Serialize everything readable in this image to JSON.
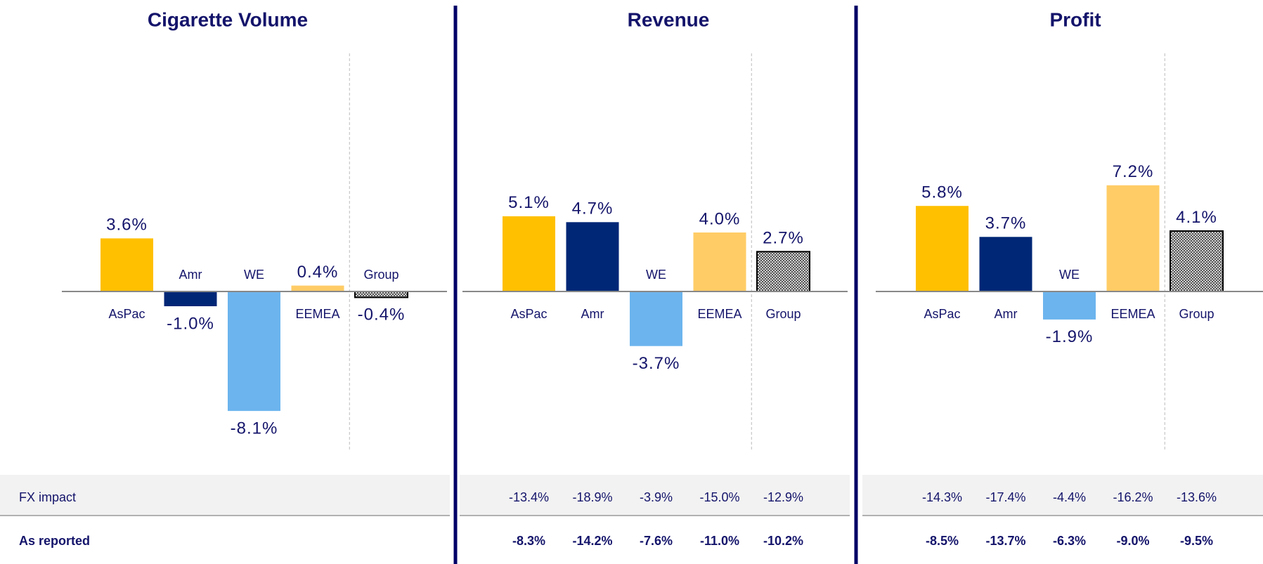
{
  "chart_data": [
    {
      "type": "bar",
      "title": "Cigarette Volume",
      "categories": [
        "AsPac",
        "Amr",
        "WE",
        "EEMEA",
        "Group"
      ],
      "values": [
        3.6,
        -1.0,
        -8.1,
        0.4,
        -0.4
      ],
      "value_labels": [
        "3.6%",
        "-1.0%",
        "-8.1%",
        "0.4%",
        "-0.4%"
      ],
      "colors": [
        "#ffc000",
        "#002776",
        "#6cb4ee",
        "#ffcc66",
        "#999999"
      ],
      "patterned": [
        false,
        false,
        false,
        false,
        true
      ]
    },
    {
      "type": "bar",
      "title": "Revenue",
      "categories": [
        "AsPac",
        "Amr",
        "WE",
        "EEMEA",
        "Group"
      ],
      "values": [
        5.1,
        4.7,
        -3.7,
        4.0,
        2.7
      ],
      "value_labels": [
        "5.1%",
        "4.7%",
        "-3.7%",
        "4.0%",
        "2.7%"
      ],
      "colors": [
        "#ffc000",
        "#002776",
        "#6cb4ee",
        "#ffcc66",
        "#999999"
      ],
      "patterned": [
        false,
        false,
        false,
        false,
        true
      ],
      "fx_impact": [
        "-13.4%",
        "-18.9%",
        "-3.9%",
        "-15.0%",
        "-12.9%"
      ],
      "as_reported": [
        "-8.3%",
        "-14.2%",
        "-7.6%",
        "-11.0%",
        "-10.2%"
      ]
    },
    {
      "type": "bar",
      "title": "Profit",
      "categories": [
        "AsPac",
        "Amr",
        "WE",
        "EEMEA",
        "Group"
      ],
      "values": [
        5.8,
        3.7,
        -1.9,
        7.2,
        4.1
      ],
      "value_labels": [
        "5.8%",
        "3.7%",
        "-1.9%",
        "7.2%",
        "4.1%"
      ],
      "colors": [
        "#ffc000",
        "#002776",
        "#6cb4ee",
        "#ffcc66",
        "#999999"
      ],
      "patterned": [
        false,
        false,
        false,
        false,
        true
      ],
      "fx_impact": [
        "-14.3%",
        "-17.4%",
        "-4.4%",
        "-16.2%",
        "-13.6%"
      ],
      "as_reported": [
        "-8.5%",
        "-13.7%",
        "-6.3%",
        "-9.0%",
        "-9.5%"
      ]
    }
  ],
  "table_row_labels": [
    "FX impact",
    "As reported"
  ]
}
